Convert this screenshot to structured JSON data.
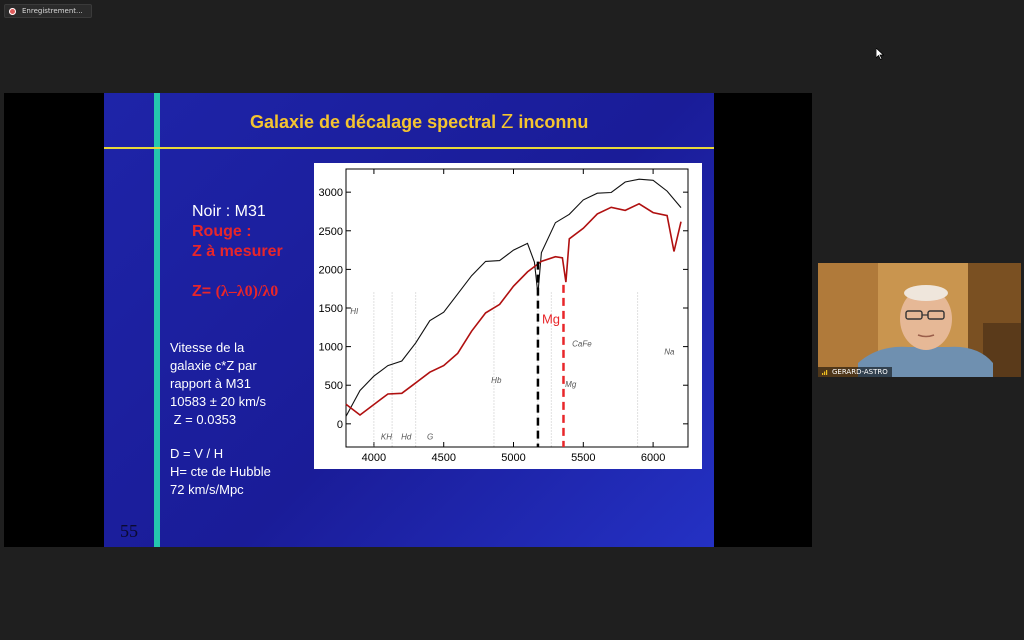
{
  "recording": {
    "label": "Enregistrement..."
  },
  "slide": {
    "title_pre": "Galaxie de décalage spectral ",
    "title_z": "Z",
    "title_post": " inconnu",
    "legend": {
      "black": "Noir : M31",
      "red1": "Rouge :",
      "red2": "Z à mesurer"
    },
    "formula": {
      "pre": "Z= ",
      "expr": "(λ–λ0)/λ0"
    },
    "notes": {
      "l1": "Vitesse de la",
      "l2": "galaxie c*Z par",
      "l3": "rapport à M31",
      "l4": "10583 ± 20 km/s",
      "l5": " Z = 0.0353",
      "l6": "D = V / H",
      "l7": "H= cte de Hubble",
      "l8": "72 km/s/Mpc"
    },
    "number": "55"
  },
  "chart_data": {
    "type": "line",
    "xlim": [
      3800,
      6250
    ],
    "ylim": [
      -300,
      3300
    ],
    "x_ticks": [
      4000,
      4500,
      5000,
      5500,
      6000
    ],
    "y_ticks": [
      0,
      500,
      1000,
      1500,
      2000,
      2500,
      3000
    ],
    "series": [
      {
        "color": "#111111",
        "x": [
          3800,
          3900,
          4000,
          4100,
          4200,
          4300,
          4400,
          4500,
          4600,
          4700,
          4800,
          4900,
          5000,
          5100,
          5150,
          5175,
          5200,
          5300,
          5400,
          5500,
          5600,
          5700,
          5800,
          5900,
          6000,
          6100,
          6200
        ],
        "y": [
          150,
          450,
          600,
          700,
          850,
          1050,
          1300,
          1500,
          1700,
          1900,
          2050,
          2150,
          2250,
          2300,
          2150,
          1700,
          2200,
          2550,
          2750,
          2900,
          2950,
          3050,
          3150,
          3150,
          3100,
          3050,
          2800
        ]
      },
      {
        "color": "#b01010",
        "x": [
          3800,
          3900,
          4000,
          4100,
          4200,
          4300,
          4400,
          4500,
          4600,
          4700,
          4800,
          4900,
          5000,
          5100,
          5200,
          5300,
          5350,
          5375,
          5400,
          5500,
          5600,
          5700,
          5800,
          5900,
          6000,
          6100,
          6150,
          6200
        ],
        "y": [
          200,
          150,
          250,
          350,
          450,
          550,
          650,
          700,
          950,
          1200,
          1400,
          1600,
          1800,
          1950,
          2050,
          2200,
          2150,
          1800,
          2450,
          2550,
          2700,
          2750,
          2800,
          2850,
          2700,
          2750,
          2250,
          2600
        ]
      }
    ],
    "annotations": {
      "lines": [
        "HI",
        "KH",
        "Hd",
        "G",
        "Hb",
        "Mg",
        "CaFe",
        "Na"
      ],
      "mg_label": "Mg"
    },
    "markers": {
      "black_line_x": 5175,
      "red_line_x": 5358
    }
  },
  "participant": {
    "name": "GERARD-ASTRO"
  },
  "colors": {
    "title": "#f4c430",
    "red": "#e8262a",
    "teal": "#25c6ae",
    "slide_bg": "#1e24a8"
  }
}
